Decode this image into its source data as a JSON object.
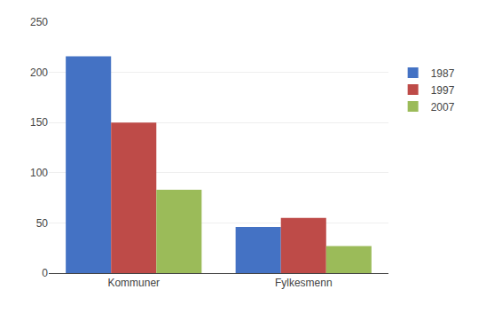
{
  "chart_data": {
    "type": "bar",
    "categories": [
      "Kommuner",
      "Fylkesmenn"
    ],
    "series": [
      {
        "name": "1987",
        "color": "#4472C4",
        "values": [
          216,
          46
        ]
      },
      {
        "name": "1997",
        "color": "#BE4B48",
        "values": [
          150,
          55
        ]
      },
      {
        "name": "2007",
        "color": "#9BBB59",
        "values": [
          83,
          27
        ]
      }
    ],
    "ylim": [
      0,
      250
    ],
    "yticks": [
      0,
      50,
      100,
      150,
      200,
      250
    ],
    "grid": true,
    "legend": "upper right"
  }
}
